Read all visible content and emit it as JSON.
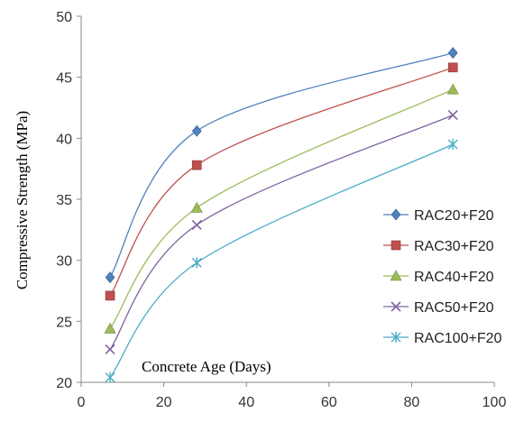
{
  "chart_data": {
    "type": "line",
    "title": "",
    "xlabel": "Concrete Age (Days)",
    "ylabel": "Compressive Strength (MPa)",
    "xlim": [
      0,
      100
    ],
    "ylim": [
      20,
      50
    ],
    "xticks": [
      0,
      20,
      40,
      60,
      80,
      100
    ],
    "yticks": [
      20,
      25,
      30,
      35,
      40,
      45,
      50
    ],
    "grid": false,
    "legend_position": "right",
    "smooth": true,
    "series": [
      {
        "name": "RAC20+F20",
        "marker": "diamond",
        "color": "#4F81BD",
        "points": [
          [
            7,
            28.6
          ],
          [
            28,
            40.6
          ],
          [
            90,
            47.0
          ]
        ]
      },
      {
        "name": "RAC30+F20",
        "marker": "square",
        "color": "#C0504D",
        "points": [
          [
            7,
            27.1
          ],
          [
            28,
            37.8
          ],
          [
            90,
            45.8
          ]
        ]
      },
      {
        "name": "RAC40+F20",
        "marker": "triangle",
        "color": "#9BBB59",
        "points": [
          [
            7,
            24.4
          ],
          [
            28,
            34.3
          ],
          [
            90,
            44.0
          ]
        ]
      },
      {
        "name": "RAC50+F20",
        "marker": "x",
        "color": "#8064A2",
        "points": [
          [
            7,
            22.7
          ],
          [
            28,
            32.9
          ],
          [
            90,
            41.9
          ]
        ]
      },
      {
        "name": "RAC100+F20",
        "marker": "star",
        "color": "#4BACC6",
        "points": [
          [
            7,
            20.4
          ],
          [
            28,
            29.8
          ],
          [
            90,
            39.5
          ]
        ]
      }
    ]
  }
}
